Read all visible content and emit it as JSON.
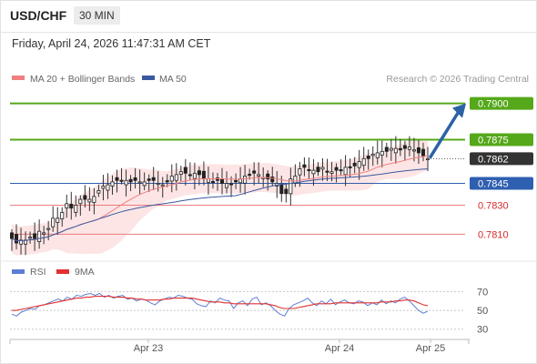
{
  "header": {
    "pair": "USD/CHF",
    "timeframe": "30 MIN",
    "datetime": "Friday, April 24, 2026 11:47:31 AM CET",
    "credit": "Research © 2026 Trading Central"
  },
  "colors": {
    "resistance": "#55a81a",
    "support_line": "#e87e7e",
    "support_text": "#d42a2a",
    "pivot": "#2f5fb0",
    "current": "#333333",
    "bollinger_fill": "#fde0e0",
    "ma20": "#f08080",
    "ma50": "#3a5a9f",
    "rsi": "#5b7fd4",
    "rsi_ma": "#e23030",
    "arrow": "#2b62a6"
  },
  "chart_data": [
    {
      "type": "candlestick",
      "title": "USD/CHF",
      "legend": [
        {
          "name": "MA 20 + Bollinger Bands",
          "color": "#f08080"
        },
        {
          "name": "MA 50",
          "color": "#3a5a9f"
        }
      ],
      "x_tick_labels": [
        "Apr 23",
        "Apr 24",
        "Apr 25"
      ],
      "levels": [
        {
          "value": 0.79,
          "label": "0.7900",
          "kind": "resistance"
        },
        {
          "value": 0.7875,
          "label": "0.7875",
          "kind": "resistance"
        },
        {
          "value": 0.7862,
          "label": "0.7862",
          "kind": "current"
        },
        {
          "value": 0.7845,
          "label": "0.7845",
          "kind": "pivot"
        },
        {
          "value": 0.783,
          "label": "0.7830",
          "kind": "support"
        },
        {
          "value": 0.781,
          "label": "0.7810",
          "kind": "support"
        }
      ],
      "ylim": [
        0.7794,
        0.7911
      ],
      "close": [
        0.7807,
        0.7804,
        0.7806,
        0.7806,
        0.7808,
        0.7807,
        0.7812,
        0.7811,
        0.7814,
        0.7821,
        0.7821,
        0.7825,
        0.7831,
        0.7828,
        0.783,
        0.7834,
        0.7834,
        0.7834,
        0.7836,
        0.784,
        0.7843,
        0.7844,
        0.7846,
        0.7847,
        0.7847,
        0.7847,
        0.7846,
        0.7847,
        0.7846,
        0.7846,
        0.7847,
        0.7847,
        0.7845,
        0.7844,
        0.7846,
        0.785,
        0.7851,
        0.7853,
        0.7852,
        0.7851,
        0.7852,
        0.7851,
        0.7848,
        0.7848,
        0.7846,
        0.7847,
        0.7845,
        0.7845,
        0.7844,
        0.7846,
        0.7848,
        0.785,
        0.7851,
        0.7852,
        0.7851,
        0.7849,
        0.7848,
        0.7846,
        0.7845,
        0.7838,
        0.7838,
        0.7848,
        0.785,
        0.7855,
        0.7856,
        0.7854,
        0.7854,
        0.7853,
        0.7856,
        0.7853,
        0.7853,
        0.7854,
        0.7854,
        0.7856,
        0.7856,
        0.7857,
        0.786,
        0.7862,
        0.7862,
        0.7865,
        0.7866,
        0.7867,
        0.7867,
        0.7869,
        0.7869,
        0.7868,
        0.7869,
        0.787,
        0.7868,
        0.7866,
        0.7864,
        0.7862
      ],
      "series": [
        {
          "name": "MA 20 + Bollinger Bands",
          "ma20_start": 0.7808,
          "ma20_end": 0.7864
        },
        {
          "name": "MA 50",
          "ma50_start": 0.7807,
          "ma50_end": 0.7857
        }
      ]
    },
    {
      "type": "line",
      "legend": [
        {
          "name": "RSI",
          "color": "#5b7fd4"
        },
        {
          "name": "9MA",
          "color": "#e23030"
        }
      ],
      "y_tick_labels": [
        "70",
        "50",
        "30"
      ],
      "ylim": [
        22,
        82
      ],
      "rsi": [
        46,
        44,
        48,
        50,
        52,
        51,
        55,
        56,
        58,
        60,
        62,
        60,
        64,
        62,
        66,
        65,
        67,
        68,
        66,
        68,
        64,
        66,
        63,
        65,
        66,
        62,
        63,
        60,
        62,
        61,
        58,
        56,
        60,
        62,
        64,
        63,
        66,
        65,
        63,
        62,
        57,
        55,
        54,
        60,
        58,
        63,
        61,
        60,
        52,
        58,
        60,
        55,
        62,
        64,
        56,
        58,
        55,
        50,
        46,
        44,
        52,
        56,
        58,
        60,
        63,
        58,
        55,
        60,
        57,
        62,
        56,
        59,
        61,
        58,
        57,
        60,
        59,
        55,
        58,
        56,
        61,
        57,
        60,
        58,
        62,
        64,
        60,
        55,
        50,
        47,
        49
      ],
      "rsi_ma": [
        50,
        50,
        51,
        52,
        53,
        54,
        55,
        56,
        57,
        58,
        59,
        60,
        61,
        62,
        63,
        63,
        64,
        64,
        65,
        65,
        65,
        65,
        64,
        64,
        64,
        63,
        63,
        62,
        62,
        61,
        61,
        61,
        61,
        62,
        62,
        63,
        63,
        63,
        63,
        63,
        62,
        61,
        60,
        59,
        59,
        59,
        58,
        58,
        57,
        57,
        57,
        57,
        57,
        57,
        57,
        57,
        56,
        55,
        53,
        52,
        52,
        52,
        53,
        54,
        55,
        56,
        57,
        57,
        57,
        57,
        58,
        58,
        58,
        58,
        58,
        58,
        58,
        58,
        58,
        58,
        59,
        59,
        59,
        60,
        60,
        61,
        61,
        60,
        58,
        56,
        55
      ]
    }
  ]
}
